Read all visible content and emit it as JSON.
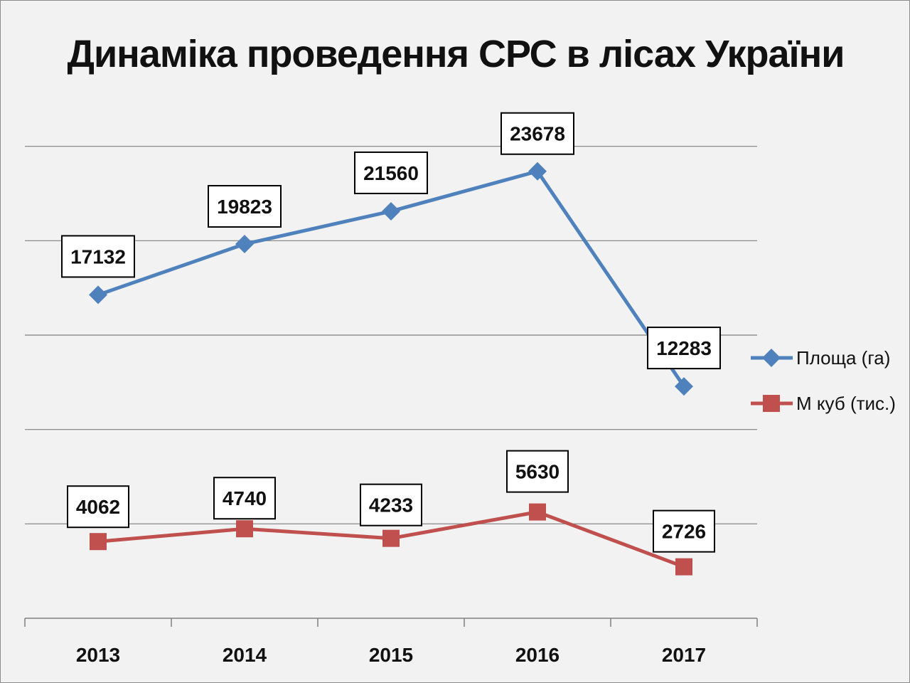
{
  "chart_data": {
    "type": "line",
    "title": "Динаміка проведення СРС в лісах України",
    "xlabel": "",
    "ylabel": "",
    "categories": [
      "2013",
      "2014",
      "2015",
      "2016",
      "2017"
    ],
    "series": [
      {
        "name": "Площа (га)",
        "values": [
          17132,
          19823,
          21560,
          23678,
          12283
        ],
        "color": "#4f81bd",
        "marker": "diamond",
        "labels": [
          "17132",
          "19823",
          "21560",
          "23678",
          "12283"
        ]
      },
      {
        "name": "М куб (тис.)",
        "values": [
          4062,
          4740,
          4233,
          5630,
          2726
        ],
        "color": "#c0504d",
        "marker": "square",
        "labels": [
          "4062",
          "4740",
          "4233",
          "5630",
          "2726"
        ]
      }
    ],
    "ylim": [
      0,
      30000
    ],
    "gridlines": true,
    "y_tick_labels_shown": false,
    "legend_position": "right",
    "data_labels": "boxed"
  }
}
